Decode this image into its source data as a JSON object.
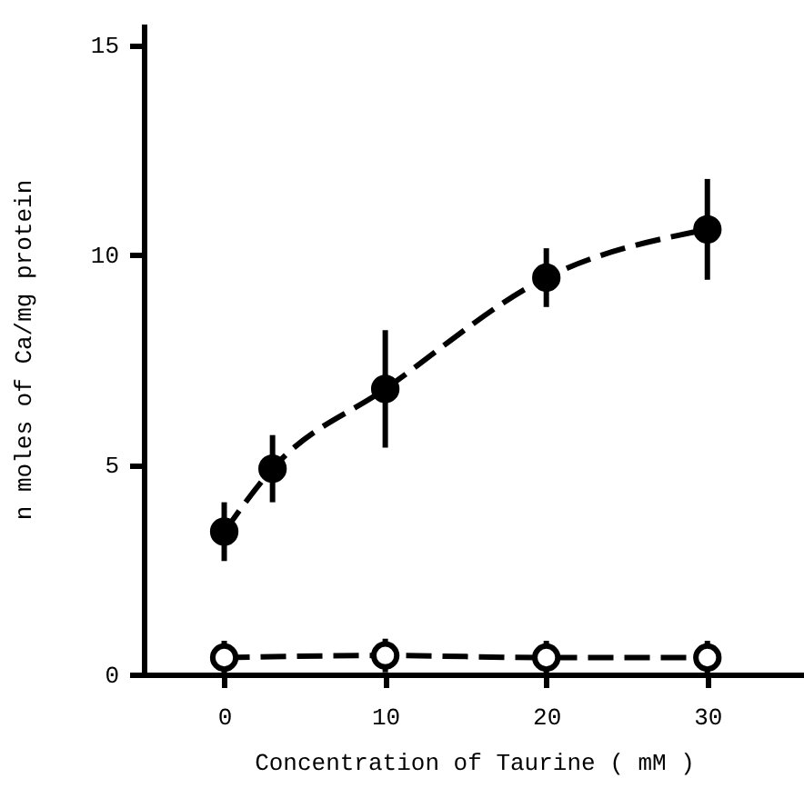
{
  "chart_data": {
    "type": "line",
    "xlabel": "Concentration of Taurine ( mM )",
    "ylabel": "n moles of Ca/mg protein",
    "xlim": [
      -5,
      36
    ],
    "xticks": [
      0,
      10,
      20,
      30
    ],
    "ylim": [
      0,
      15.5
    ],
    "yticks": [
      0,
      5,
      10,
      15
    ],
    "grid": false,
    "marker": "circle",
    "line_style": "dashed",
    "series": [
      {
        "color": "#000000",
        "x": [
          0,
          3,
          10,
          20,
          30
        ],
        "values": [
          3.4,
          4.9,
          6.8,
          9.45,
          10.6
        ],
        "errors": [
          0.7,
          0.8,
          1.4,
          0.7,
          1.2
        ]
      },
      {
        "color": "#000000",
        "x": [
          0,
          10,
          20,
          30
        ],
        "values": [
          0.4,
          0.45,
          0.4,
          0.4
        ],
        "errors": [
          0.4,
          0.4,
          0.4,
          0.4
        ]
      }
    ]
  }
}
